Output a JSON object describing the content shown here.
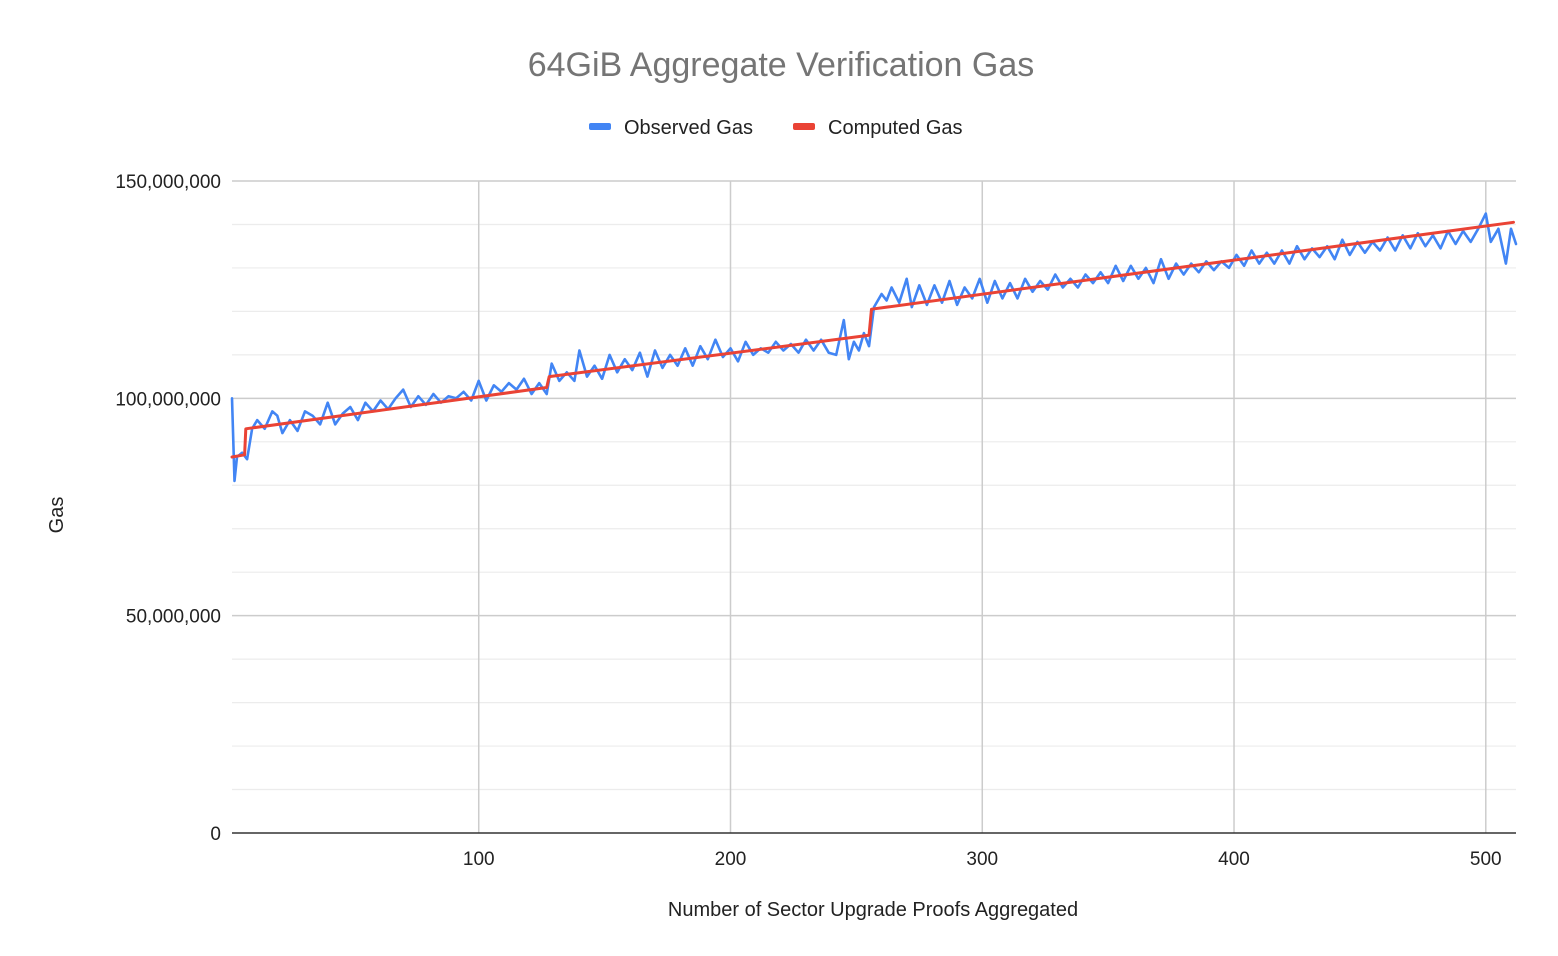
{
  "chart_data": {
    "type": "line",
    "title": "64GiB Aggregate Verification Gas",
    "xlabel": "Number of Sector Upgrade Proofs Aggregated",
    "ylabel": "Gas",
    "xlim": [
      2,
      512
    ],
    "ylim": [
      0,
      150000000
    ],
    "x_ticks": [
      100,
      200,
      300,
      400,
      500
    ],
    "x_tick_labels": [
      "100",
      "200",
      "300",
      "400",
      "500"
    ],
    "y_ticks": [
      0,
      50000000,
      100000000,
      150000000
    ],
    "y_tick_labels": [
      "0",
      "50,000,000",
      "100,000,000",
      "150,000,000"
    ],
    "legend_position": "top",
    "grid": true,
    "series": [
      {
        "name": "Observed Gas",
        "color": "#4285F4",
        "points": [
          [
            2,
            100000000
          ],
          [
            3,
            81000000
          ],
          [
            4,
            86500000
          ],
          [
            6,
            87500000
          ],
          [
            8,
            86000000
          ],
          [
            10,
            93000000
          ],
          [
            12,
            95000000
          ],
          [
            15,
            93000000
          ],
          [
            18,
            97000000
          ],
          [
            20,
            96000000
          ],
          [
            22,
            92000000
          ],
          [
            25,
            95000000
          ],
          [
            28,
            92500000
          ],
          [
            31,
            97000000
          ],
          [
            34,
            96000000
          ],
          [
            37,
            94000000
          ],
          [
            40,
            99000000
          ],
          [
            43,
            94000000
          ],
          [
            46,
            96500000
          ],
          [
            49,
            98000000
          ],
          [
            52,
            95000000
          ],
          [
            55,
            99000000
          ],
          [
            58,
            97000000
          ],
          [
            61,
            99500000
          ],
          [
            64,
            97500000
          ],
          [
            67,
            100000000
          ],
          [
            70,
            102000000
          ],
          [
            73,
            98000000
          ],
          [
            76,
            100500000
          ],
          [
            79,
            98500000
          ],
          [
            82,
            101000000
          ],
          [
            85,
            99000000
          ],
          [
            88,
            100500000
          ],
          [
            91,
            100000000
          ],
          [
            94,
            101500000
          ],
          [
            97,
            99500000
          ],
          [
            100,
            104000000
          ],
          [
            103,
            99500000
          ],
          [
            106,
            103000000
          ],
          [
            109,
            101500000
          ],
          [
            112,
            103500000
          ],
          [
            115,
            102000000
          ],
          [
            118,
            104500000
          ],
          [
            121,
            101000000
          ],
          [
            124,
            103500000
          ],
          [
            127,
            101000000
          ],
          [
            129,
            108000000
          ],
          [
            132,
            104000000
          ],
          [
            135,
            106000000
          ],
          [
            138,
            104000000
          ],
          [
            140,
            111000000
          ],
          [
            143,
            105000000
          ],
          [
            146,
            107500000
          ],
          [
            149,
            104500000
          ],
          [
            152,
            110000000
          ],
          [
            155,
            106000000
          ],
          [
            158,
            109000000
          ],
          [
            161,
            106500000
          ],
          [
            164,
            110500000
          ],
          [
            167,
            105000000
          ],
          [
            170,
            111000000
          ],
          [
            173,
            107000000
          ],
          [
            176,
            110000000
          ],
          [
            179,
            107500000
          ],
          [
            182,
            111500000
          ],
          [
            185,
            107500000
          ],
          [
            188,
            112000000
          ],
          [
            191,
            109000000
          ],
          [
            194,
            113500000
          ],
          [
            197,
            109500000
          ],
          [
            200,
            111500000
          ],
          [
            203,
            108500000
          ],
          [
            206,
            113000000
          ],
          [
            209,
            110000000
          ],
          [
            212,
            111500000
          ],
          [
            215,
            110500000
          ],
          [
            218,
            113000000
          ],
          [
            221,
            111000000
          ],
          [
            224,
            112500000
          ],
          [
            227,
            110500000
          ],
          [
            230,
            113500000
          ],
          [
            233,
            111000000
          ],
          [
            236,
            113500000
          ],
          [
            239,
            110500000
          ],
          [
            242,
            110000000
          ],
          [
            245,
            118000000
          ],
          [
            247,
            109000000
          ],
          [
            249,
            113000000
          ],
          [
            251,
            111000000
          ],
          [
            253,
            115000000
          ],
          [
            255,
            112000000
          ],
          [
            257,
            121000000
          ],
          [
            260,
            124000000
          ],
          [
            262,
            122500000
          ],
          [
            264,
            125500000
          ],
          [
            267,
            122000000
          ],
          [
            270,
            127500000
          ],
          [
            272,
            121000000
          ],
          [
            275,
            126000000
          ],
          [
            278,
            121500000
          ],
          [
            281,
            126000000
          ],
          [
            284,
            122000000
          ],
          [
            287,
            127000000
          ],
          [
            290,
            121500000
          ],
          [
            293,
            125500000
          ],
          [
            296,
            123000000
          ],
          [
            299,
            127500000
          ],
          [
            302,
            122000000
          ],
          [
            305,
            127000000
          ],
          [
            308,
            123000000
          ],
          [
            311,
            126500000
          ],
          [
            314,
            123000000
          ],
          [
            317,
            127500000
          ],
          [
            320,
            124500000
          ],
          [
            323,
            127000000
          ],
          [
            326,
            125000000
          ],
          [
            329,
            128500000
          ],
          [
            332,
            125500000
          ],
          [
            335,
            127500000
          ],
          [
            338,
            125500000
          ],
          [
            341,
            128500000
          ],
          [
            344,
            126500000
          ],
          [
            347,
            129000000
          ],
          [
            350,
            126500000
          ],
          [
            353,
            130500000
          ],
          [
            356,
            127000000
          ],
          [
            359,
            130500000
          ],
          [
            362,
            127500000
          ],
          [
            365,
            130000000
          ],
          [
            368,
            126500000
          ],
          [
            371,
            132000000
          ],
          [
            374,
            127500000
          ],
          [
            377,
            131000000
          ],
          [
            380,
            128500000
          ],
          [
            383,
            131000000
          ],
          [
            386,
            129000000
          ],
          [
            389,
            131500000
          ],
          [
            392,
            129500000
          ],
          [
            395,
            131500000
          ],
          [
            398,
            130000000
          ],
          [
            401,
            133000000
          ],
          [
            404,
            130500000
          ],
          [
            407,
            134000000
          ],
          [
            410,
            131000000
          ],
          [
            413,
            133500000
          ],
          [
            416,
            131000000
          ],
          [
            419,
            134000000
          ],
          [
            422,
            131000000
          ],
          [
            425,
            135000000
          ],
          [
            428,
            132000000
          ],
          [
            431,
            134500000
          ],
          [
            434,
            132500000
          ],
          [
            437,
            135000000
          ],
          [
            440,
            132000000
          ],
          [
            443,
            136500000
          ],
          [
            446,
            133000000
          ],
          [
            449,
            136000000
          ],
          [
            452,
            133500000
          ],
          [
            455,
            136000000
          ],
          [
            458,
            134000000
          ],
          [
            461,
            137000000
          ],
          [
            464,
            134000000
          ],
          [
            467,
            137500000
          ],
          [
            470,
            134500000
          ],
          [
            473,
            138000000
          ],
          [
            476,
            135000000
          ],
          [
            479,
            137500000
          ],
          [
            482,
            134500000
          ],
          [
            485,
            138500000
          ],
          [
            488,
            135500000
          ],
          [
            491,
            138500000
          ],
          [
            494,
            136000000
          ],
          [
            497,
            139000000
          ],
          [
            500,
            142500000
          ],
          [
            502,
            136000000
          ],
          [
            505,
            139000000
          ],
          [
            508,
            131000000
          ],
          [
            510,
            139000000
          ],
          [
            512,
            135500000
          ]
        ]
      },
      {
        "name": "Computed Gas",
        "color": "#EA4335",
        "points": [
          [
            2,
            86500000
          ],
          [
            7,
            87000000
          ],
          [
            7.5,
            93000000
          ],
          [
            127,
            102500000
          ],
          [
            128,
            105000000
          ],
          [
            255,
            114500000
          ],
          [
            256,
            120500000
          ],
          [
            511,
            140500000
          ]
        ]
      }
    ]
  }
}
